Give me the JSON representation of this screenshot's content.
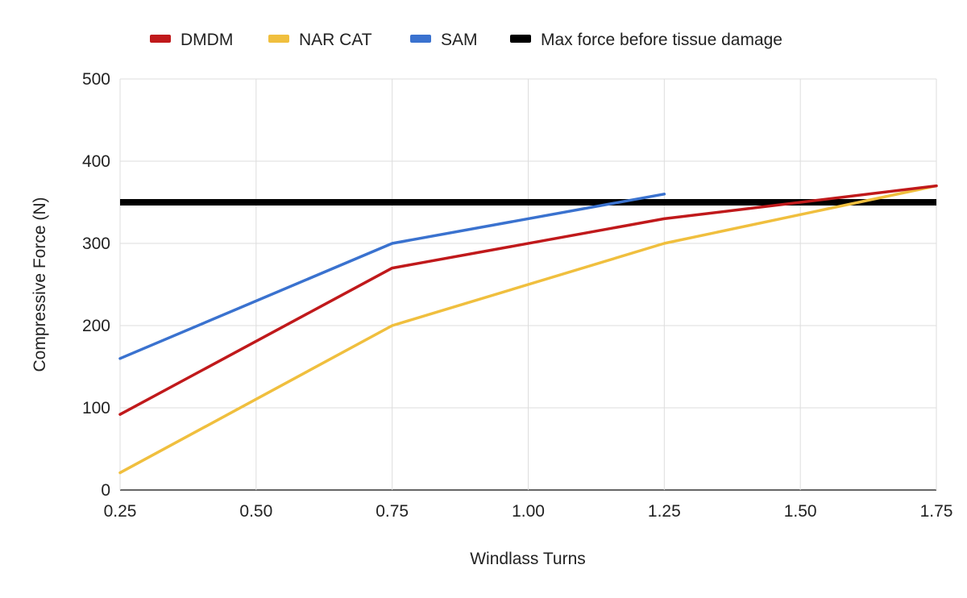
{
  "chart_data": {
    "type": "line",
    "title": "",
    "xlabel": "Windlass Turns",
    "ylabel": "Compressive Force (N)",
    "xlim": [
      0.25,
      1.75
    ],
    "ylim": [
      0,
      500
    ],
    "x_ticks": [
      "0.25",
      "0.50",
      "0.75",
      "1.00",
      "1.25",
      "1.50",
      "1.75"
    ],
    "y_ticks": [
      "0",
      "100",
      "200",
      "300",
      "400",
      "500"
    ],
    "grid": true,
    "legend_position": "top",
    "series": [
      {
        "name": "DMDM",
        "color": "#c0191b",
        "x": [
          0.25,
          0.75,
          1.25,
          1.75
        ],
        "y": [
          92,
          270,
          330,
          370
        ]
      },
      {
        "name": "NAR CAT",
        "color": "#f0bf3e",
        "x": [
          0.25,
          0.75,
          1.25,
          1.75
        ],
        "y": [
          21,
          200,
          300,
          370
        ]
      },
      {
        "name": "SAM",
        "color": "#3a72cf",
        "x": [
          0.25,
          0.75,
          1.25
        ],
        "y": [
          160,
          300,
          360
        ]
      },
      {
        "name": "Max force before tissue damage",
        "color": "#000000",
        "x": [
          0.25,
          1.75
        ],
        "y": [
          350,
          350
        ]
      }
    ]
  }
}
